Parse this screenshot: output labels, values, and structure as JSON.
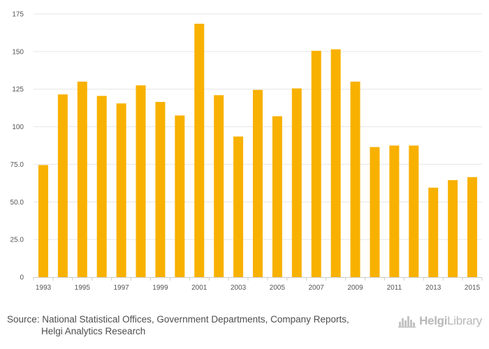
{
  "chart_data": {
    "type": "bar",
    "title": "",
    "xlabel": "",
    "ylabel": "",
    "categories": [
      "1993",
      "1994",
      "1995",
      "1996",
      "1997",
      "1998",
      "1999",
      "2000",
      "2001",
      "2002",
      "2003",
      "2004",
      "2005",
      "2006",
      "2007",
      "2008",
      "2009",
      "2010",
      "2011",
      "2012",
      "2013",
      "2014",
      "2015"
    ],
    "values": [
      74.5,
      121.5,
      130,
      120.5,
      115.5,
      127.5,
      116.5,
      107.5,
      168.5,
      121,
      93.5,
      124.5,
      107,
      125.5,
      150.5,
      151.5,
      130,
      86.5,
      87.5,
      87.5,
      59.5,
      64.5,
      66.5
    ],
    "x_tick_labels": [
      "1993",
      "1995",
      "1997",
      "1999",
      "2001",
      "2003",
      "2005",
      "2007",
      "2009",
      "2011",
      "2013",
      "2015"
    ],
    "y_tick_labels": [
      "0",
      "25.0",
      "50.0",
      "75.0",
      "100",
      "125",
      "150",
      "175"
    ],
    "y_tick_values": [
      0,
      25,
      50,
      75,
      100,
      125,
      150,
      175
    ],
    "ylim": [
      0,
      175
    ],
    "grid": true,
    "bar_color": "#f8b100"
  },
  "footer": {
    "source_line1": "Source: National Statistical Offices, Government Departments, Company Reports,",
    "source_line2": "Helgi Analytics Research"
  },
  "brand": {
    "name_part1": "Helgi",
    "name_part2": "Library",
    "icon": "helgi-library-logo-icon",
    "color": "#b8b8b8"
  }
}
